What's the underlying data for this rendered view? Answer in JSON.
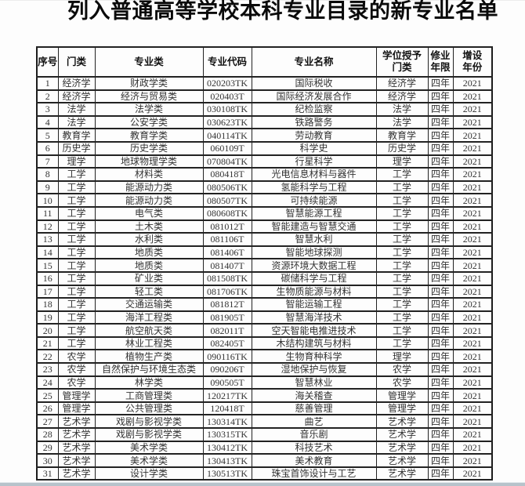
{
  "document": {
    "title": "列入普通高等学校本科专业目录的新专业名单"
  },
  "table": {
    "columns": [
      {
        "key": "index",
        "label": "序号"
      },
      {
        "key": "category",
        "label": "门类"
      },
      {
        "key": "major_class",
        "label": "专业类"
      },
      {
        "key": "major_code",
        "label": "专业代码"
      },
      {
        "key": "major_name",
        "label": "专业名称"
      },
      {
        "key": "degree_category",
        "label": "学位授予\n门类"
      },
      {
        "key": "study_duration",
        "label": "修业\n年限"
      },
      {
        "key": "year_added",
        "label": "增设\n年份"
      }
    ],
    "rows": [
      [
        "1",
        "经济学",
        "财政学类",
        "020203TK",
        "国际税收",
        "经济学",
        "四年",
        "2021"
      ],
      [
        "2",
        "经济学",
        "经济与贸易类",
        "020403T",
        "国际经济发展合作",
        "经济学",
        "四年",
        "2021"
      ],
      [
        "3",
        "法学",
        "法学类",
        "030108TK",
        "纪检监察",
        "法学",
        "四年",
        "2021"
      ],
      [
        "4",
        "法学",
        "公安学类",
        "030623TK",
        "铁路警务",
        "法学",
        "四年",
        "2021"
      ],
      [
        "5",
        "教育学",
        "教育学类",
        "040114TK",
        "劳动教育",
        "教育学",
        "四年",
        "2021"
      ],
      [
        "6",
        "历史学",
        "历史学类",
        "060109T",
        "科学史",
        "历史学",
        "四年",
        "2021"
      ],
      [
        "7",
        "理学",
        "地球物理学类",
        "070804TK",
        "行星科学",
        "理学",
        "四年",
        "2021"
      ],
      [
        "8",
        "工学",
        "材料类",
        "080418T",
        "光电信息材料与器件",
        "工学",
        "四年",
        "2021"
      ],
      [
        "9",
        "工学",
        "能源动力类",
        "080506TK",
        "氢能科学与工程",
        "工学",
        "四年",
        "2021"
      ],
      [
        "10",
        "工学",
        "能源动力类",
        "080507TK",
        "可持续能源",
        "工学",
        "四年",
        "2021"
      ],
      [
        "11",
        "工学",
        "电气类",
        "080608TK",
        "智慧能源工程",
        "工学",
        "四年",
        "2021"
      ],
      [
        "12",
        "工学",
        "土木类",
        "081012T",
        "智能建造与智慧交通",
        "工学",
        "四年",
        "2021"
      ],
      [
        "13",
        "工学",
        "水利类",
        "081106T",
        "智慧水利",
        "工学",
        "四年",
        "2021"
      ],
      [
        "14",
        "工学",
        "地质类",
        "081406T",
        "智能地球探测",
        "工学",
        "四年",
        "2021"
      ],
      [
        "15",
        "工学",
        "地质类",
        "081407T",
        "资源环境大数据工程",
        "工学",
        "四年",
        "2021"
      ],
      [
        "16",
        "工学",
        "矿业类",
        "081508TK",
        "碳储科学与工程",
        "工学",
        "四年",
        "2021"
      ],
      [
        "17",
        "工学",
        "轻工类",
        "081706TK",
        "生物质能源与材料",
        "工学",
        "四年",
        "2021"
      ],
      [
        "18",
        "工学",
        "交通运输类",
        "081812T",
        "智能运输工程",
        "工学",
        "四年",
        "2021"
      ],
      [
        "19",
        "工学",
        "海洋工程类",
        "081905T",
        "智慧海洋技术",
        "工学",
        "四年",
        "2021"
      ],
      [
        "20",
        "工学",
        "航空航天类",
        "082011T",
        "空天智能电推进技术",
        "工学",
        "四年",
        "2021"
      ],
      [
        "21",
        "工学",
        "林业工程类",
        "082405T",
        "木结构建筑与材料",
        "工学",
        "四年",
        "2021"
      ],
      [
        "22",
        "农学",
        "植物生产类",
        "090116TK",
        "生物育种科学",
        "理学",
        "四年",
        "2021"
      ],
      [
        "23",
        "农学",
        "自然保护与环境生态类",
        "090206T",
        "湿地保护与恢复",
        "农学",
        "四年",
        "2021"
      ],
      [
        "24",
        "农学",
        "林学类",
        "090505T",
        "智慧林业",
        "农学",
        "四年",
        "2021"
      ],
      [
        "25",
        "管理学",
        "工商管理类",
        "120217TK",
        "海关稽查",
        "管理学",
        "四年",
        "2021"
      ],
      [
        "26",
        "管理学",
        "公共管理类",
        "120418T",
        "慈善管理",
        "管理学",
        "四年",
        "2021"
      ],
      [
        "27",
        "艺术学",
        "戏剧与影视学类",
        "130314TK",
        "曲艺",
        "艺术学",
        "四年",
        "2021"
      ],
      [
        "28",
        "艺术学",
        "戏剧与影视学类",
        "130315TK",
        "音乐剧",
        "艺术学",
        "四年",
        "2021"
      ],
      [
        "29",
        "艺术学",
        "美术学类",
        "130412TK",
        "科技艺术",
        "艺术学",
        "四年",
        "2021"
      ],
      [
        "30",
        "艺术学",
        "美术学类",
        "130413TK",
        "美术教育",
        "艺术学",
        "四年",
        "2021"
      ],
      [
        "31",
        "艺术学",
        "设计学类",
        "130513TK",
        "珠宝首饰设计与工艺",
        "艺术学",
        "四年",
        "2021"
      ]
    ]
  },
  "colors": {
    "table_border": "#1c1c1c",
    "body_text": "#333333",
    "bottom_strip": "#b7c3cb"
  }
}
